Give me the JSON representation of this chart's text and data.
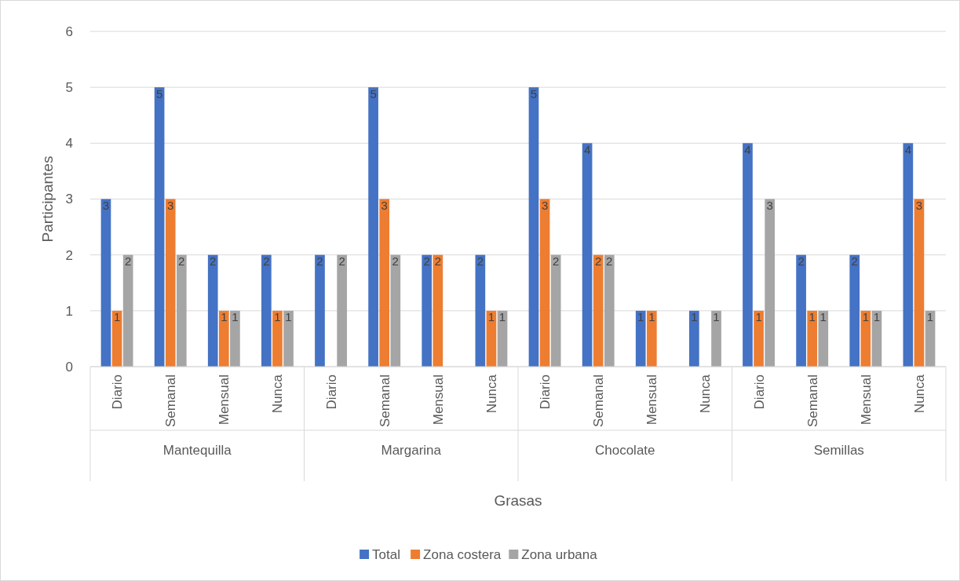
{
  "chart_data": {
    "type": "bar",
    "xlabel": "Grasas",
    "ylabel": "Participantes",
    "categories": [
      "Diario",
      "Semanal",
      "Mensual",
      "Nunca",
      "Diario",
      "Semanal",
      "Mensual",
      "Nunca",
      "Diario",
      "Semanal",
      "Mensual",
      "Nunca",
      "Diario",
      "Semanal",
      "Mensual",
      "Nunca"
    ],
    "annotations": [
      "Mantequilla",
      "Margarina",
      "Chocolate",
      "Semillas"
    ],
    "series": [
      {
        "name": "Total",
        "color": "#4472c4",
        "values": [
          3,
          5,
          2,
          2,
          2,
          5,
          2,
          2,
          5,
          4,
          1,
          1,
          4,
          2,
          2,
          4
        ],
        "value_labels": [
          "3",
          "5",
          "2",
          "2",
          "2",
          "5",
          "2",
          "2",
          "5",
          "4",
          "1",
          "1",
          "4",
          "2",
          "2",
          "4"
        ]
      },
      {
        "name": "Zona costera",
        "color": "#ed7d31",
        "values": [
          1,
          3,
          1,
          1,
          0,
          3,
          2,
          1,
          3,
          2,
          1,
          0,
          1,
          1,
          1,
          3
        ],
        "value_labels": [
          "1",
          "3",
          "1",
          "1",
          null,
          "3",
          "2",
          "1",
          "3",
          "2",
          "1",
          null,
          "1",
          "1",
          "1",
          "3"
        ]
      },
      {
        "name": "Zona urbana",
        "color": "#a5a5a5",
        "values": [
          2,
          2,
          1,
          1,
          2,
          2,
          0,
          1,
          2,
          2,
          0,
          1,
          3,
          1,
          1,
          1
        ],
        "value_labels": [
          "2",
          "2",
          "1",
          "1",
          "2",
          "2",
          null,
          "1",
          "2",
          "2",
          null,
          "1",
          "3",
          "1",
          "1",
          "1"
        ]
      }
    ],
    "ylim": [
      0,
      6
    ],
    "yticks": [
      0,
      1,
      2,
      3,
      4,
      5,
      6
    ],
    "grid": "y",
    "legend": "bottom"
  }
}
